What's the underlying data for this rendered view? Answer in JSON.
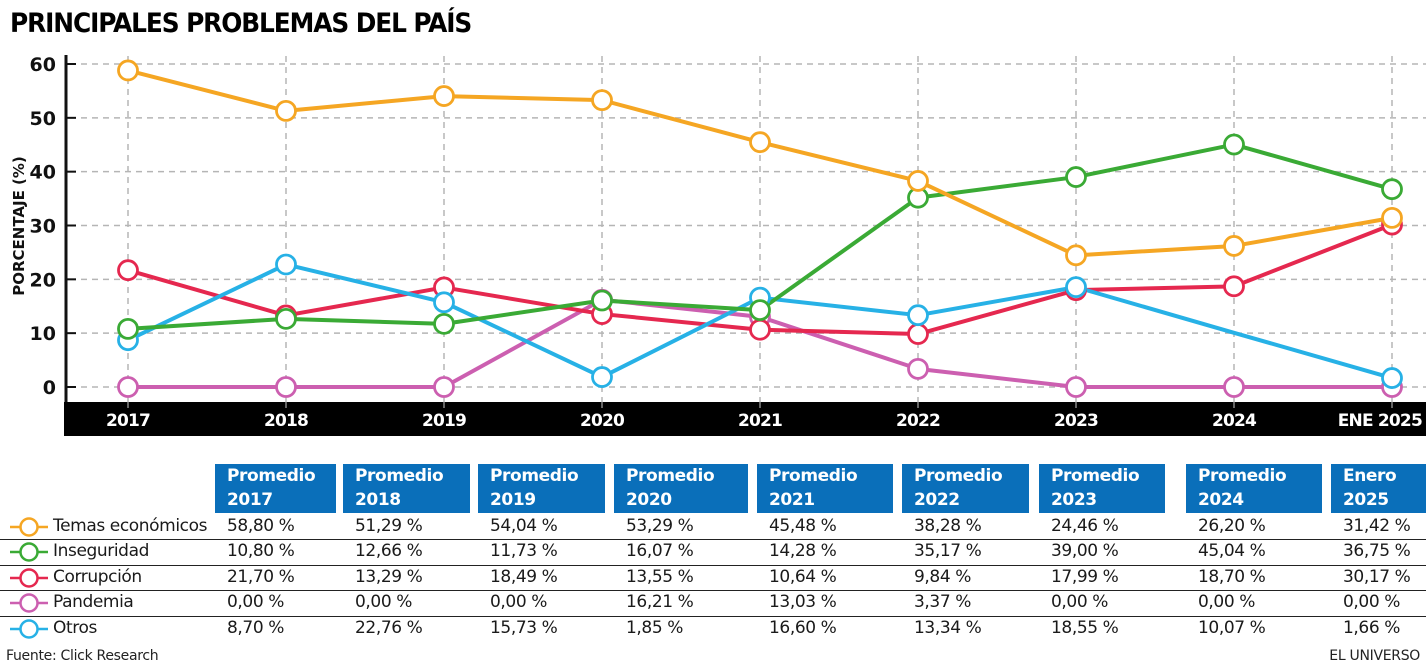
{
  "header": {
    "title": "PRINCIPALES PROBLEMAS DEL PAÍS"
  },
  "chart_data": {
    "type": "line",
    "title": "PRINCIPALES PROBLEMAS DEL PAÍS",
    "xlabel": "",
    "ylabel": "PORCENTAJE (%)",
    "categories": [
      "2017",
      "2018",
      "2019",
      "2020",
      "2021",
      "2022",
      "2023",
      "2024",
      "ENE 2025"
    ],
    "yticks": [
      "0",
      "10",
      "20",
      "30",
      "40",
      "50",
      "60"
    ],
    "ylim": [
      0,
      60
    ],
    "grid": true,
    "series": [
      {
        "name": "Temas económicos",
        "color": "#f5a623",
        "values": [
          58.8,
          51.29,
          54.04,
          53.29,
          45.48,
          38.28,
          24.46,
          26.2,
          31.42
        ],
        "markers": [
          true,
          true,
          true,
          true,
          true,
          true,
          true,
          true,
          true
        ]
      },
      {
        "name": "Inseguridad",
        "color": "#3aaa35",
        "values": [
          10.8,
          12.66,
          11.73,
          16.07,
          14.28,
          35.17,
          39.0,
          45.04,
          36.75
        ],
        "markers": [
          true,
          true,
          true,
          true,
          true,
          true,
          true,
          true,
          true
        ]
      },
      {
        "name": "Corrupción",
        "color": "#e5284f",
        "values": [
          21.7,
          13.29,
          18.49,
          13.55,
          10.64,
          9.84,
          17.99,
          18.7,
          30.17
        ],
        "markers": [
          true,
          true,
          true,
          true,
          true,
          true,
          true,
          true,
          true
        ]
      },
      {
        "name": "Pandemia",
        "color": "#cc5fb0",
        "values": [
          0.0,
          0.0,
          0.0,
          16.21,
          13.03,
          3.37,
          0.0,
          0.0,
          0.0
        ],
        "markers": [
          true,
          true,
          true,
          true,
          true,
          true,
          true,
          true,
          true
        ]
      },
      {
        "name": "Otros",
        "color": "#27b1e6",
        "values": [
          8.7,
          22.76,
          15.73,
          1.85,
          16.6,
          13.34,
          18.55,
          10.07,
          1.66
        ],
        "markers": [
          true,
          true,
          true,
          true,
          true,
          true,
          true,
          false,
          true
        ]
      }
    ]
  },
  "table": {
    "columns": [
      {
        "line1": "Promedio",
        "line2": "2017"
      },
      {
        "line1": "Promedio",
        "line2": "2018"
      },
      {
        "line1": "Promedio",
        "line2": "2019"
      },
      {
        "line1": "Promedio",
        "line2": "2020"
      },
      {
        "line1": "Promedio",
        "line2": "2021"
      },
      {
        "line1": "Promedio",
        "line2": "2022"
      },
      {
        "line1": "Promedio",
        "line2": "2023"
      },
      {
        "line1": "Promedio",
        "line2": "2024"
      },
      {
        "line1": "Enero",
        "line2": "2025"
      }
    ],
    "header_color": "#0a6fba",
    "rows": [
      {
        "label": "Temas económicos",
        "color": "#f5a623",
        "cells": [
          "58,80 %",
          "51,29 %",
          "54,04 %",
          "53,29 %",
          "45,48 %",
          "38,28 %",
          "24,46 %",
          "26,20 %",
          "31,42 %"
        ]
      },
      {
        "label": "Inseguridad",
        "color": "#3aaa35",
        "cells": [
          "10,80 %",
          "12,66 %",
          "11,73 %",
          "16,07 %",
          "14,28 %",
          "35,17 %",
          "39,00 %",
          "45,04 %",
          "36,75 %"
        ]
      },
      {
        "label": "Corrupción",
        "color": "#e5284f",
        "cells": [
          "21,70 %",
          "13,29 %",
          "18,49 %",
          "13,55 %",
          "10,64 %",
          "9,84 %",
          "17,99 %",
          "18,70 %",
          "30,17 %"
        ]
      },
      {
        "label": "Pandemia",
        "color": "#cc5fb0",
        "cells": [
          "0,00 %",
          "0,00 %",
          "0,00 %",
          "16,21 %",
          "13,03 %",
          "3,37 %",
          "0,00 %",
          "0,00 %",
          "0,00 %"
        ]
      },
      {
        "label": "Otros",
        "color": "#27b1e6",
        "cells": [
          "8,70 %",
          "22,76 %",
          "15,73 %",
          "1,85 %",
          "16,60 %",
          "13,34 %",
          "18,55 %",
          "10,07 %",
          "1,66 %"
        ]
      }
    ]
  },
  "footer": {
    "source": "Fuente: Click Research",
    "brand": "EL UNIVERSO"
  }
}
